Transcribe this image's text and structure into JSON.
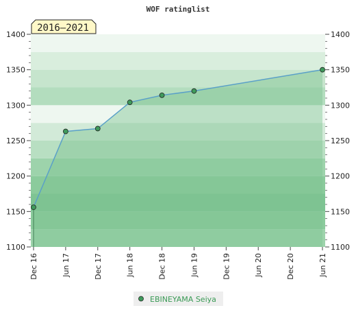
{
  "chart_data": {
    "type": "area",
    "title": "WOF ratinglist",
    "period_badge": "2016–2021",
    "xlabel": "",
    "ylabel": "",
    "x_ticks": [
      "Dec 16",
      "Jun 17",
      "Dec 17",
      "Jun 18",
      "Dec 18",
      "Jun 19",
      "Dec 19",
      "Jun 20",
      "Dec 20",
      "Jun 21"
    ],
    "ylim": [
      1100,
      1400
    ],
    "y_ticks": [
      1100,
      1150,
      1200,
      1250,
      1300,
      1350,
      1400
    ],
    "y_axes": "left-and-right",
    "grid": "horizontal bands",
    "legend_position": "bottom-center",
    "series": [
      {
        "name": "EBINEYAMA Seiya",
        "x": [
          "Dec 16",
          "Jun 17",
          "Dec 17",
          "Jun 18",
          "Dec 18",
          "Jun 19",
          "Jun 21"
        ],
        "values": [
          1156,
          1263,
          1267,
          1304,
          1314,
          1320,
          1350
        ]
      }
    ],
    "colors": {
      "line": "#5aa0c8",
      "marker": "#3f9a5c",
      "area": "#7ec493",
      "legend_text": "#3a9a55",
      "badge_bg": "#fff8c8"
    }
  }
}
